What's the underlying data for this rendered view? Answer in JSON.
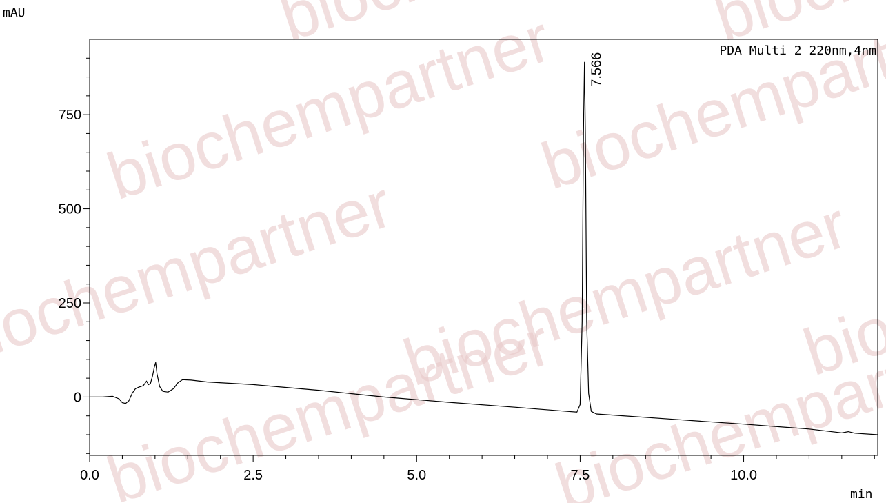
{
  "watermark": {
    "text": "biochempartner"
  },
  "chart_data": {
    "type": "line",
    "title": "",
    "xlabel": "min",
    "ylabel": "mAU",
    "xlim": [
      0,
      12.05
    ],
    "ylim": [
      -155,
      950
    ],
    "x_ticks": [
      "0.0",
      "2.5",
      "5.0",
      "7.5",
      "10.0"
    ],
    "y_ticks": [
      "0",
      "250",
      "500",
      "750"
    ],
    "grid": false,
    "legend": "top-right",
    "series": [
      {
        "name": "PDA Multi 2 220nm,4nm",
        "points": [
          [
            0.0,
            0
          ],
          [
            0.2,
            0
          ],
          [
            0.35,
            2
          ],
          [
            0.45,
            -5
          ],
          [
            0.5,
            -15
          ],
          [
            0.55,
            -17
          ],
          [
            0.6,
            -10
          ],
          [
            0.65,
            10
          ],
          [
            0.7,
            22
          ],
          [
            0.75,
            26
          ],
          [
            0.82,
            30
          ],
          [
            0.87,
            42
          ],
          [
            0.9,
            33
          ],
          [
            0.93,
            36
          ],
          [
            0.96,
            55
          ],
          [
            0.99,
            80
          ],
          [
            1.01,
            92
          ],
          [
            1.03,
            62
          ],
          [
            1.07,
            28
          ],
          [
            1.12,
            15
          ],
          [
            1.2,
            13
          ],
          [
            1.28,
            22
          ],
          [
            1.35,
            38
          ],
          [
            1.42,
            46
          ],
          [
            1.55,
            45
          ],
          [
            1.8,
            40
          ],
          [
            2.5,
            33
          ],
          [
            3.5,
            18
          ],
          [
            4.5,
            0
          ],
          [
            5.5,
            -14
          ],
          [
            6.5,
            -27
          ],
          [
            7.3,
            -38
          ],
          [
            7.45,
            -40
          ],
          [
            7.5,
            -20
          ],
          [
            7.53,
            200
          ],
          [
            7.55,
            700
          ],
          [
            7.566,
            890
          ],
          [
            7.58,
            700
          ],
          [
            7.6,
            200
          ],
          [
            7.63,
            10
          ],
          [
            7.67,
            -38
          ],
          [
            7.75,
            -45
          ],
          [
            8.0,
            -48
          ],
          [
            9.0,
            -60
          ],
          [
            10.0,
            -72
          ],
          [
            11.0,
            -85
          ],
          [
            11.5,
            -95
          ],
          [
            11.6,
            -92
          ],
          [
            11.7,
            -96
          ],
          [
            12.05,
            -100
          ]
        ]
      }
    ],
    "peak_annotations": [
      {
        "x": 7.566,
        "y": 890,
        "label": "7.566"
      }
    ]
  }
}
